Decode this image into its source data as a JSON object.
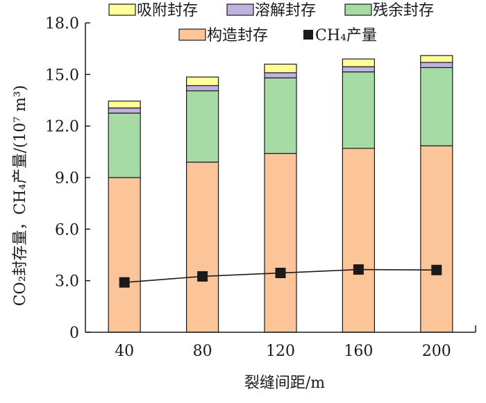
{
  "chart_data": {
    "type": "bar",
    "stacked": true,
    "xlabel": "裂缝间距/m",
    "ylabel": "CO₂封存量，CH₄产量/(10⁷ m³)",
    "ylim": [
      0,
      18
    ],
    "yticks": [
      "0",
      "3.0",
      "6.0",
      "9.0",
      "12.0",
      "15.0",
      "18.0"
    ],
    "categories": [
      "40",
      "80",
      "120",
      "160",
      "200"
    ],
    "series": [
      {
        "name": "构造封存",
        "color": "#FCC499",
        "values": [
          9.0,
          9.9,
          10.4,
          10.7,
          10.85
        ]
      },
      {
        "name": "残余封存",
        "color": "#A6DBA6",
        "values": [
          3.75,
          4.15,
          4.4,
          4.45,
          4.55
        ]
      },
      {
        "name": "溶解封存",
        "color": "#BFB2DE",
        "values": [
          0.3,
          0.3,
          0.3,
          0.3,
          0.3
        ]
      },
      {
        "name": "吸附封存",
        "color": "#FFFF99",
        "values": [
          0.4,
          0.5,
          0.5,
          0.45,
          0.4
        ]
      }
    ],
    "line_series": {
      "name": "CH₄产量",
      "color": "#1a1a1a",
      "values": [
        2.9,
        3.25,
        3.45,
        3.65,
        3.62
      ]
    },
    "legend": {
      "placement": "top",
      "row1": [
        "吸附封存",
        "溶解封存",
        "残余封存"
      ],
      "row2": [
        "构造封存",
        "CH₄产量"
      ]
    },
    "grid": false
  }
}
